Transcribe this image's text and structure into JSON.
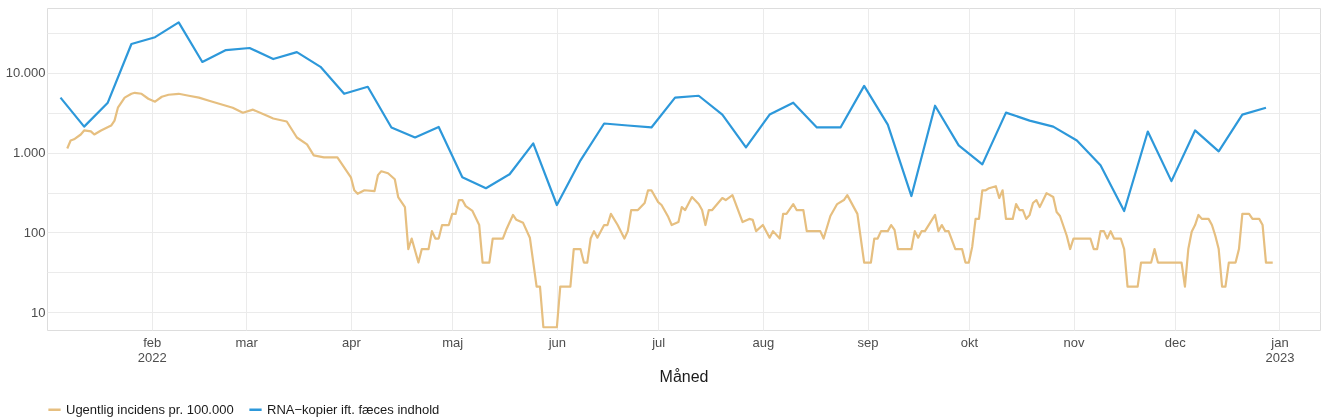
{
  "chart_data": {
    "type": "line",
    "xlabel": "Måned",
    "log": "y",
    "grid": true,
    "legend": "bottom",
    "marker": "none",
    "line_style": "solid",
    "xlim": [
      "2022-01-01",
      "2023-01-13"
    ],
    "xticks": [
      {
        "value": "2022-02-01",
        "label": "feb\n2022"
      },
      {
        "value": "2022-03-01",
        "label": "mar"
      },
      {
        "value": "2022-04-01",
        "label": "apr"
      },
      {
        "value": "2022-05-01",
        "label": "maj"
      },
      {
        "value": "2022-06-01",
        "label": "jun"
      },
      {
        "value": "2022-07-01",
        "label": "jul"
      },
      {
        "value": "2022-08-01",
        "label": "aug"
      },
      {
        "value": "2022-09-01",
        "label": "sep"
      },
      {
        "value": "2022-10-01",
        "label": "okt"
      },
      {
        "value": "2022-11-01",
        "label": "nov"
      },
      {
        "value": "2022-12-01",
        "label": "dec"
      },
      {
        "value": "2023-01-01",
        "label": "jan\n2023"
      }
    ],
    "ylim": [
      6,
      65000
    ],
    "yticks": [
      10,
      {
        "value": 31.62,
        "label": null
      },
      100,
      {
        "value": 316.2,
        "label": null
      },
      {
        "value": 1000,
        "label": "1.000"
      },
      {
        "value": 3162,
        "label": null
      },
      {
        "value": 10000,
        "label": "10.000"
      },
      {
        "value": 31623,
        "label": null
      }
    ],
    "series": [
      {
        "name": "Ugentlig incidens pr. 100.000",
        "color": "#e6bf80",
        "x": [
          "2022-01-07",
          "2022-01-08",
          "2022-01-09",
          "2022-01-11",
          "2022-01-12",
          "2022-01-14",
          "2022-01-15",
          "2022-01-17",
          "2022-01-20",
          "2022-01-21",
          "2022-01-22",
          "2022-01-24",
          "2022-01-26",
          "2022-01-27",
          "2022-01-29",
          "2022-01-31",
          "2022-02-02",
          "2022-02-04",
          "2022-02-06",
          "2022-02-09",
          "2022-02-12",
          "2022-02-15",
          "2022-02-18",
          "2022-02-22",
          "2022-02-25",
          "2022-02-28",
          "2022-03-03",
          "2022-03-07",
          "2022-03-09",
          "2022-03-13",
          "2022-03-16",
          "2022-03-19",
          "2022-03-21",
          "2022-03-24",
          "2022-03-28",
          "2022-03-29",
          "2022-03-31",
          "2022-04-01",
          "2022-04-02",
          "2022-04-03",
          "2022-04-05",
          "2022-04-08",
          "2022-04-09",
          "2022-04-10",
          "2022-04-12",
          "2022-04-14",
          "2022-04-15",
          "2022-04-17",
          "2022-04-18",
          "2022-04-19",
          "2022-04-21",
          "2022-04-22",
          "2022-04-24",
          "2022-04-25",
          "2022-04-26",
          "2022-04-27",
          "2022-04-28",
          "2022-04-30",
          "2022-05-01",
          "2022-05-02",
          "2022-05-03",
          "2022-05-04",
          "2022-05-05",
          "2022-05-07",
          "2022-05-09",
          "2022-05-10",
          "2022-05-12",
          "2022-05-13",
          "2022-05-16",
          "2022-05-17",
          "2022-05-19",
          "2022-05-20",
          "2022-05-22",
          "2022-05-24",
          "2022-05-26",
          "2022-05-27",
          "2022-05-28",
          "2022-06-01",
          "2022-06-02",
          "2022-06-05",
          "2022-06-06",
          "2022-06-08",
          "2022-06-09",
          "2022-06-10",
          "2022-06-11",
          "2022-06-12",
          "2022-06-13",
          "2022-06-15",
          "2022-06-16",
          "2022-06-17",
          "2022-06-19",
          "2022-06-21",
          "2022-06-22",
          "2022-06-23",
          "2022-06-25",
          "2022-06-27",
          "2022-06-28",
          "2022-06-29",
          "2022-07-01",
          "2022-07-02",
          "2022-07-04",
          "2022-07-05",
          "2022-07-07",
          "2022-07-08",
          "2022-07-09",
          "2022-07-11",
          "2022-07-13",
          "2022-07-14",
          "2022-07-15",
          "2022-07-16",
          "2022-07-17",
          "2022-07-20",
          "2022-07-21",
          "2022-07-23",
          "2022-07-26",
          "2022-07-28",
          "2022-07-29",
          "2022-07-30",
          "2022-08-01",
          "2022-08-03",
          "2022-08-04",
          "2022-08-06",
          "2022-08-07",
          "2022-08-08",
          "2022-08-10",
          "2022-08-11",
          "2022-08-13",
          "2022-08-14",
          "2022-08-18",
          "2022-08-19",
          "2022-08-21",
          "2022-08-23",
          "2022-08-25",
          "2022-08-26",
          "2022-08-29",
          "2022-08-31",
          "2022-09-02",
          "2022-09-03",
          "2022-09-04",
          "2022-09-05",
          "2022-09-07",
          "2022-09-08",
          "2022-09-09",
          "2022-09-10",
          "2022-09-14",
          "2022-09-15",
          "2022-09-16",
          "2022-09-17",
          "2022-09-18",
          "2022-09-21",
          "2022-09-22",
          "2022-09-23",
          "2022-09-24",
          "2022-09-25",
          "2022-09-27",
          "2022-09-29",
          "2022-09-30",
          "2022-10-01",
          "2022-10-02",
          "2022-10-03",
          "2022-10-04",
          "2022-10-05",
          "2022-10-06",
          "2022-10-07",
          "2022-10-09",
          "2022-10-10",
          "2022-10-11",
          "2022-10-12",
          "2022-10-14",
          "2022-10-15",
          "2022-10-16",
          "2022-10-17",
          "2022-10-18",
          "2022-10-19",
          "2022-10-20",
          "2022-10-21",
          "2022-10-22",
          "2022-10-24",
          "2022-10-26",
          "2022-10-27",
          "2022-10-28",
          "2022-10-30",
          "2022-10-31",
          "2022-11-01",
          "2022-11-06",
          "2022-11-07",
          "2022-11-08",
          "2022-11-09",
          "2022-11-10",
          "2022-11-11",
          "2022-11-12",
          "2022-11-13",
          "2022-11-15",
          "2022-11-16",
          "2022-11-17",
          "2022-11-20",
          "2022-11-21",
          "2022-11-24",
          "2022-11-25",
          "2022-11-26",
          "2022-12-03",
          "2022-12-04",
          "2022-12-05",
          "2022-12-06",
          "2022-12-07",
          "2022-12-08",
          "2022-12-09",
          "2022-12-11",
          "2022-12-12",
          "2022-12-13",
          "2022-12-14",
          "2022-12-15",
          "2022-12-16",
          "2022-12-17",
          "2022-12-19",
          "2022-12-20",
          "2022-12-21",
          "2022-12-23",
          "2022-12-24",
          "2022-12-26",
          "2022-12-27",
          "2022-12-28",
          "2022-12-30"
        ],
        "values": [
          1130,
          1420,
          1470,
          1690,
          1900,
          1850,
          1690,
          1900,
          2190,
          2520,
          3660,
          4890,
          5470,
          5630,
          5470,
          4740,
          4350,
          5020,
          5320,
          5470,
          5170,
          4890,
          4480,
          3990,
          3660,
          3170,
          3460,
          2920,
          2680,
          2460,
          1550,
          1270,
          925,
          874,
          874,
          758,
          568,
          492,
          338,
          305,
          338,
          330,
          523,
          585,
          552,
          464,
          278,
          208,
          62,
          84,
          42,
          62,
          62,
          104,
          84,
          84,
          124,
          124,
          171,
          171,
          255,
          255,
          214,
          186,
          124,
          42,
          42,
          84,
          84,
          108,
          166,
          144,
          132,
          86,
          21,
          21,
          6.5,
          6.5,
          21,
          21,
          62,
          62,
          42,
          42,
          84,
          104,
          86,
          124,
          124,
          171,
          124,
          84,
          104,
          191,
          191,
          234,
          338,
          338,
          240,
          221,
          156,
          124,
          135,
          208,
          191,
          278,
          227,
          191,
          124,
          191,
          191,
          270,
          255,
          294,
          135,
          148,
          144,
          104,
          124,
          86,
          104,
          84,
          171,
          171,
          227,
          191,
          191,
          104,
          104,
          84,
          161,
          227,
          255,
          294,
          171,
          42,
          42,
          84,
          84,
          104,
          104,
          124,
          108,
          62,
          62,
          104,
          86,
          104,
          104,
          166,
          104,
          124,
          104,
          104,
          62,
          62,
          42,
          42,
          66,
          148,
          148,
          338,
          338,
          359,
          380,
          270,
          338,
          148,
          148,
          227,
          191,
          191,
          148,
          166,
          234,
          255,
          208,
          311,
          278,
          181,
          161,
          91,
          62,
          84,
          84,
          62,
          62,
          104,
          104,
          84,
          104,
          84,
          84,
          62,
          21,
          21,
          42,
          42,
          62,
          42,
          42,
          21,
          62,
          102,
          124,
          166,
          148,
          148,
          124,
          91,
          62,
          21,
          21,
          42,
          42,
          62,
          171,
          171,
          148,
          148,
          124,
          42,
          42
        ]
      },
      {
        "name": "RNA−kopier ift. fæces indhold",
        "color": "#2d98da",
        "x": [
          "2022-01-05",
          "2022-01-12",
          "2022-01-19",
          "2022-01-26",
          "2022-02-02",
          "2022-02-09",
          "2022-02-16",
          "2022-02-23",
          "2022-03-02",
          "2022-03-09",
          "2022-03-16",
          "2022-03-23",
          "2022-03-30",
          "2022-04-06",
          "2022-04-13",
          "2022-04-20",
          "2022-04-27",
          "2022-05-04",
          "2022-05-11",
          "2022-05-18",
          "2022-05-25",
          "2022-06-01",
          "2022-06-08",
          "2022-06-15",
          "2022-06-22",
          "2022-06-29",
          "2022-07-06",
          "2022-07-13",
          "2022-07-20",
          "2022-07-27",
          "2022-08-03",
          "2022-08-10",
          "2022-08-17",
          "2022-08-24",
          "2022-08-31",
          "2022-09-07",
          "2022-09-14",
          "2022-09-21",
          "2022-09-28",
          "2022-10-05",
          "2022-10-12",
          "2022-10-19",
          "2022-10-26",
          "2022-11-02",
          "2022-11-09",
          "2022-11-16",
          "2022-11-23",
          "2022-11-30",
          "2022-12-07",
          "2022-12-14",
          "2022-12-21",
          "2022-12-28"
        ],
        "values": [
          4900,
          2120,
          4230,
          23000,
          28000,
          43000,
          13700,
          19300,
          20500,
          14900,
          18200,
          11900,
          5470,
          6700,
          2070,
          1550,
          2100,
          492,
          359,
          537,
          1306,
          221,
          802,
          2320,
          2190,
          2070,
          4890,
          5170,
          3000,
          1165,
          3000,
          4230,
          2070,
          2070,
          6880,
          2250,
          286,
          3880,
          1233,
          714,
          3180,
          2520,
          2120,
          1420,
          695,
          186,
          1840,
          440,
          1900,
          1040,
          3000,
          3660
        ]
      }
    ]
  }
}
